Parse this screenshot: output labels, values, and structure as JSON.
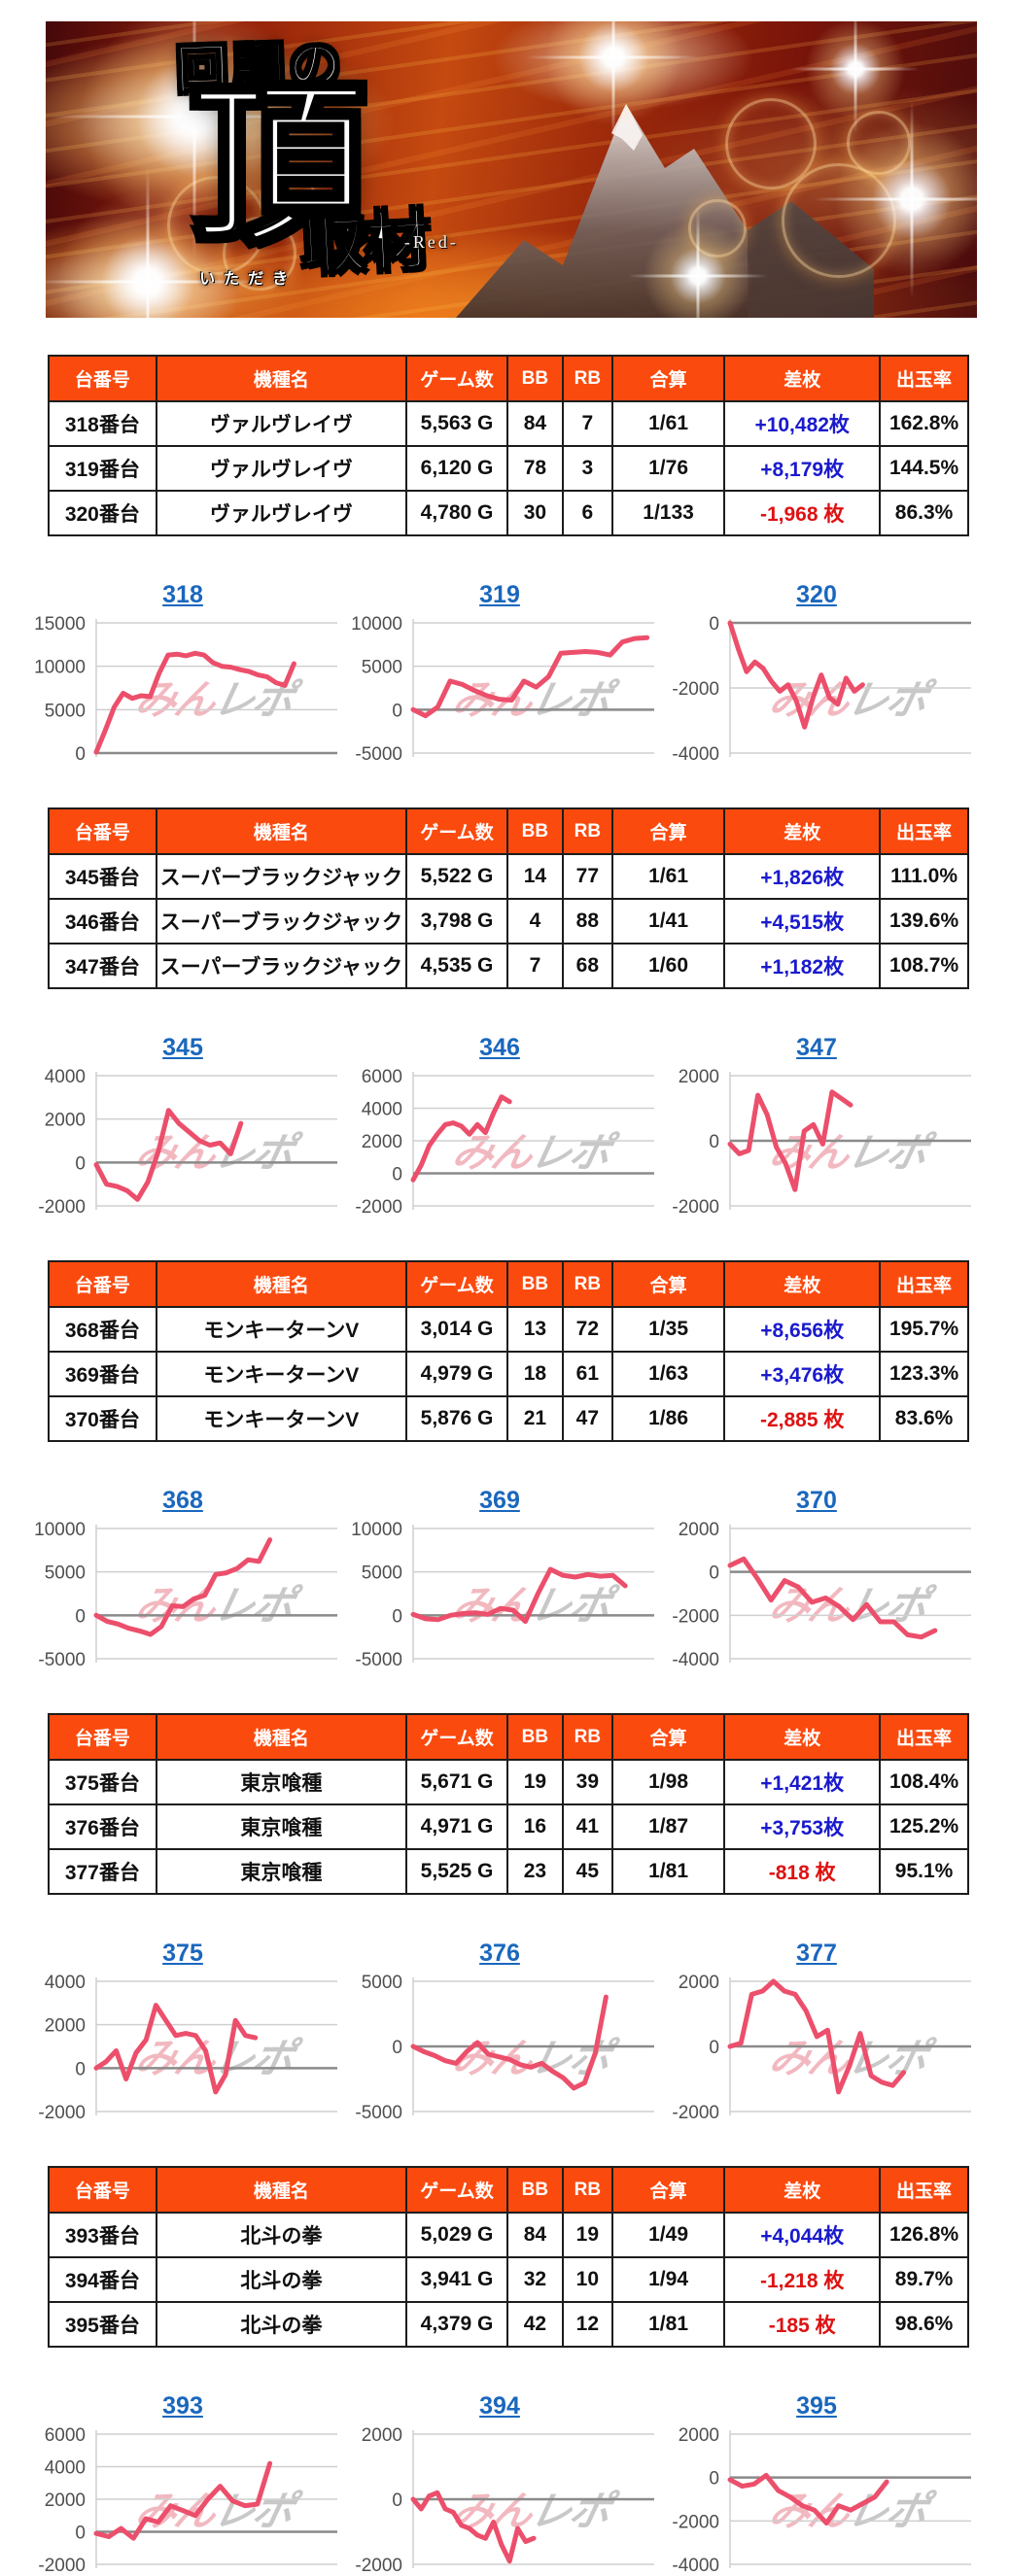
{
  "banner": {
    "title_top": "回胴の",
    "title_main": "頂",
    "furigana": "いただき",
    "subtitle": "取材",
    "subtitle_suffix": "-Red-"
  },
  "watermark": {
    "part1": "みん",
    "part2": "レポ"
  },
  "colors": {
    "header_bg": "#fb4a0e",
    "header_text": "#ffffff",
    "positive": "#1a1acd",
    "negative": "#de1212",
    "link": "#1a67bd",
    "line": "#ec4f6b",
    "grid": "#cfcfcf",
    "axis_zero": "#8a8a8a",
    "tick_text": "#4f4f4f"
  },
  "table_headers": [
    "台番号",
    "機種名",
    "ゲーム数",
    "BB",
    "RB",
    "合算",
    "差枚",
    "出玉率"
  ],
  "sections": [
    {
      "table": {
        "rows": [
          {
            "no": "318番台",
            "model": "ヴァルヴレイヴ",
            "games": "5,563 G",
            "bb": "84",
            "rb": "7",
            "gassan": "1/61",
            "diff": "+10,482枚",
            "diff_sign": "plus",
            "payout": "162.8%"
          },
          {
            "no": "319番台",
            "model": "ヴァルヴレイヴ",
            "games": "6,120 G",
            "bb": "78",
            "rb": "3",
            "gassan": "1/76",
            "diff": "+8,179枚",
            "diff_sign": "plus",
            "payout": "144.5%"
          },
          {
            "no": "320番台",
            "model": "ヴァルヴレイヴ",
            "games": "4,780 G",
            "bb": "30",
            "rb": "6",
            "gassan": "1/133",
            "diff": "-1,968 枚",
            "diff_sign": "minus",
            "payout": "86.3%"
          }
        ]
      },
      "chart_data": [
        {
          "type": "line",
          "label": "318",
          "ylim": [
            0,
            15000
          ],
          "ticks": [
            15000,
            10000,
            5000,
            0
          ],
          "span": 0.82,
          "values": [
            100,
            2600,
            5300,
            6900,
            6300,
            6600,
            6500,
            9200,
            11300,
            11400,
            11200,
            11500,
            11300,
            10400,
            10000,
            9900,
            9600,
            9400,
            9000,
            8800,
            8100,
            7800,
            10300
          ]
        },
        {
          "type": "line",
          "label": "319",
          "ylim": [
            -5000,
            10000
          ],
          "ticks": [
            10000,
            5000,
            0,
            -5000
          ],
          "span": 0.97,
          "values": [
            0,
            -700,
            300,
            3300,
            2900,
            2200,
            1600,
            1200,
            1100,
            3300,
            2600,
            3800,
            6500,
            6600,
            6700,
            6600,
            6300,
            7800,
            8200,
            8300
          ]
        },
        {
          "type": "line",
          "label": "320",
          "ylim": [
            -4000,
            0
          ],
          "ticks": [
            0,
            -2000,
            -4000
          ],
          "span": 0.55,
          "values": [
            0,
            -800,
            -1500,
            -1200,
            -1400,
            -1800,
            -2100,
            -1900,
            -2400,
            -3200,
            -2300,
            -1600,
            -2300,
            -2500,
            -1700,
            -2100,
            -1900
          ]
        }
      ]
    },
    {
      "table": {
        "rows": [
          {
            "no": "345番台",
            "model": "スーパーブラックジャック",
            "games": "5,522 G",
            "bb": "14",
            "rb": "77",
            "gassan": "1/61",
            "diff": "+1,826枚",
            "diff_sign": "plus",
            "payout": "111.0%"
          },
          {
            "no": "346番台",
            "model": "スーパーブラックジャック",
            "games": "3,798 G",
            "bb": "4",
            "rb": "88",
            "gassan": "1/41",
            "diff": "+4,515枚",
            "diff_sign": "plus",
            "payout": "139.6%"
          },
          {
            "no": "347番台",
            "model": "スーパーブラックジャック",
            "games": "4,535 G",
            "bb": "7",
            "rb": "68",
            "gassan": "1/60",
            "diff": "+1,182枚",
            "diff_sign": "plus",
            "payout": "108.7%"
          }
        ]
      },
      "chart_data": [
        {
          "type": "line",
          "label": "345",
          "ylim": [
            -2000,
            4000
          ],
          "ticks": [
            4000,
            2000,
            0,
            -2000
          ],
          "span": 0.6,
          "values": [
            -100,
            -1000,
            -1100,
            -1300,
            -1700,
            -900,
            500,
            2400,
            1800,
            1400,
            1000,
            800,
            900,
            400,
            1800
          ]
        },
        {
          "type": "line",
          "label": "346",
          "ylim": [
            -2000,
            6000
          ],
          "ticks": [
            6000,
            4000,
            2000,
            0,
            -2000
          ],
          "span": 0.4,
          "values": [
            -400,
            500,
            1700,
            2400,
            3000,
            3100,
            2900,
            2400,
            3000,
            2500,
            3700,
            4700,
            4400
          ]
        },
        {
          "type": "line",
          "label": "347",
          "ylim": [
            -2000,
            2000
          ],
          "ticks": [
            2000,
            0,
            -2000
          ],
          "span": 0.5,
          "values": [
            -100,
            -400,
            -300,
            1400,
            800,
            -200,
            -700,
            -1500,
            300,
            500,
            -100,
            1500,
            1300,
            1100
          ]
        }
      ]
    },
    {
      "table": {
        "rows": [
          {
            "no": "368番台",
            "model": "モンキーターンV",
            "games": "3,014 G",
            "bb": "13",
            "rb": "72",
            "gassan": "1/35",
            "diff": "+8,656枚",
            "diff_sign": "plus",
            "payout": "195.7%"
          },
          {
            "no": "369番台",
            "model": "モンキーターンV",
            "games": "4,979 G",
            "bb": "18",
            "rb": "61",
            "gassan": "1/63",
            "diff": "+3,476枚",
            "diff_sign": "plus",
            "payout": "123.3%"
          },
          {
            "no": "370番台",
            "model": "モンキーターンV",
            "games": "5,876 G",
            "bb": "21",
            "rb": "47",
            "gassan": "1/86",
            "diff": "-2,885 枚",
            "diff_sign": "minus",
            "payout": "83.6%"
          }
        ]
      },
      "chart_data": [
        {
          "type": "line",
          "label": "368",
          "ylim": [
            -5000,
            10000
          ],
          "ticks": [
            10000,
            5000,
            0,
            -5000
          ],
          "span": 0.72,
          "values": [
            0,
            -700,
            -1000,
            -1500,
            -1800,
            -2200,
            -1300,
            1100,
            1000,
            1900,
            2300,
            4700,
            4900,
            5400,
            6400,
            6200,
            8700
          ]
        },
        {
          "type": "line",
          "label": "369",
          "ylim": [
            -5000,
            10000
          ],
          "ticks": [
            10000,
            5000,
            0,
            -5000
          ],
          "span": 0.88,
          "values": [
            100,
            -400,
            -500,
            0,
            200,
            300,
            100,
            800,
            600,
            -700,
            2500,
            5300,
            4600,
            4400,
            4700,
            4500,
            4600,
            3400
          ]
        },
        {
          "type": "line",
          "label": "370",
          "ylim": [
            -4000,
            2000
          ],
          "ticks": [
            2000,
            0,
            -2000,
            -4000
          ],
          "span": 0.85,
          "values": [
            300,
            600,
            -300,
            -1300,
            -400,
            -700,
            -1400,
            -1200,
            -1600,
            -2200,
            -1500,
            -2300,
            -2300,
            -2900,
            -3000,
            -2700
          ]
        }
      ]
    },
    {
      "table": {
        "rows": [
          {
            "no": "375番台",
            "model": "東京喰種",
            "games": "5,671 G",
            "bb": "19",
            "rb": "39",
            "gassan": "1/98",
            "diff": "+1,421枚",
            "diff_sign": "plus",
            "payout": "108.4%"
          },
          {
            "no": "376番台",
            "model": "東京喰種",
            "games": "4,971 G",
            "bb": "16",
            "rb": "41",
            "gassan": "1/87",
            "diff": "+3,753枚",
            "diff_sign": "plus",
            "payout": "125.2%"
          },
          {
            "no": "377番台",
            "model": "東京喰種",
            "games": "5,525 G",
            "bb": "23",
            "rb": "45",
            "gassan": "1/81",
            "diff": "-818 枚",
            "diff_sign": "minus",
            "payout": "95.1%"
          }
        ]
      },
      "chart_data": [
        {
          "type": "line",
          "label": "375",
          "ylim": [
            -2000,
            4000
          ],
          "ticks": [
            4000,
            2000,
            0,
            -2000
          ],
          "span": 0.66,
          "values": [
            0,
            300,
            800,
            -500,
            700,
            1300,
            2900,
            2200,
            1500,
            1600,
            1500,
            800,
            -1100,
            -300,
            2200,
            1500,
            1400
          ]
        },
        {
          "type": "line",
          "label": "376",
          "ylim": [
            -5000,
            5000
          ],
          "ticks": [
            5000,
            0,
            -5000
          ],
          "span": 0.8,
          "values": [
            0,
            -400,
            -700,
            -1100,
            -1300,
            -400,
            300,
            -600,
            -800,
            -1000,
            -1400,
            -1600,
            -1300,
            -1900,
            -2400,
            -3200,
            -2800,
            -500,
            3800
          ]
        },
        {
          "type": "line",
          "label": "377",
          "ylim": [
            -2000,
            2000
          ],
          "ticks": [
            2000,
            0,
            -2000
          ],
          "span": 0.72,
          "values": [
            0,
            100,
            1600,
            1700,
            2000,
            1700,
            1600,
            1100,
            300,
            500,
            -1400,
            -600,
            400,
            -900,
            -1100,
            -1200,
            -800
          ]
        }
      ]
    },
    {
      "table": {
        "rows": [
          {
            "no": "393番台",
            "model": "北斗の拳",
            "games": "5,029 G",
            "bb": "84",
            "rb": "19",
            "gassan": "1/49",
            "diff": "+4,044枚",
            "diff_sign": "plus",
            "payout": "126.8%"
          },
          {
            "no": "394番台",
            "model": "北斗の拳",
            "games": "3,941 G",
            "bb": "32",
            "rb": "10",
            "gassan": "1/94",
            "diff": "-1,218 枚",
            "diff_sign": "minus",
            "payout": "89.7%"
          },
          {
            "no": "395番台",
            "model": "北斗の拳",
            "games": "4,379 G",
            "bb": "42",
            "rb": "12",
            "gassan": "1/81",
            "diff": "-185 枚",
            "diff_sign": "minus",
            "payout": "98.6%"
          }
        ]
      },
      "chart_data": [
        {
          "type": "line",
          "label": "393",
          "ylim": [
            -2000,
            6000
          ],
          "ticks": [
            6000,
            4000,
            2000,
            0,
            -2000
          ],
          "span": 0.72,
          "values": [
            -100,
            -300,
            200,
            -400,
            800,
            600,
            1600,
            1300,
            1000,
            2000,
            2800,
            1900,
            1600,
            1700,
            4200
          ]
        },
        {
          "type": "line",
          "label": "394",
          "ylim": [
            -2000,
            2000
          ],
          "ticks": [
            2000,
            0,
            -2000
          ],
          "span": 0.5,
          "values": [
            0,
            -300,
            100,
            200,
            -300,
            -400,
            -800,
            -900,
            -1100,
            -1200,
            -700,
            -1400,
            -1900,
            -900,
            -1300,
            -1200
          ]
        },
        {
          "type": "line",
          "label": "395",
          "ylim": [
            -4000,
            2000
          ],
          "ticks": [
            2000,
            0,
            -2000,
            -4000
          ],
          "span": 0.65,
          "values": [
            -100,
            -400,
            -300,
            100,
            -600,
            -900,
            -1300,
            -1500,
            -2100,
            -1300,
            -1500,
            -1200,
            -900,
            -200
          ]
        }
      ]
    }
  ]
}
